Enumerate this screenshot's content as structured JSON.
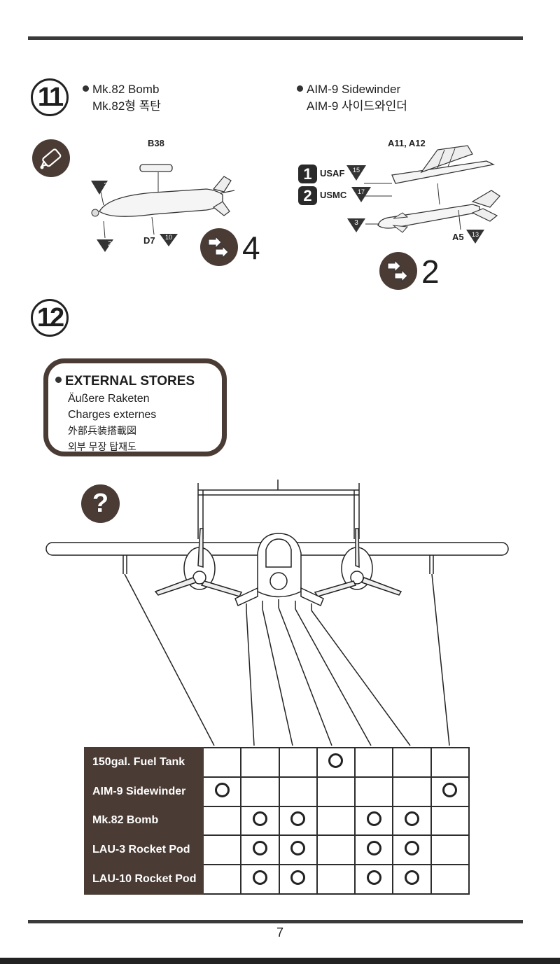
{
  "steps": {
    "s11": {
      "number": "11",
      "mk82": {
        "title_en": "Mk.82 Bomb",
        "title_ko": "Mk.82형 폭탄",
        "part_b38": "B38",
        "part_d7": "D7",
        "num_10": "10",
        "num_3": "3",
        "num_2": "2",
        "qty": "4"
      },
      "aim9": {
        "title_en": "AIM-9 Sidewinder",
        "title_ko": "AIM-9 사이드와인더",
        "part_a11_a12": "A11, A12",
        "usaf": "USAF",
        "usaf_num": "15",
        "usmc": "USMC",
        "usmc_num": "17",
        "badge_1": "1",
        "badge_2": "2",
        "num_3": "3",
        "part_a5": "A5",
        "num_13": "13",
        "qty": "2"
      }
    },
    "s12": {
      "number": "12"
    }
  },
  "external_stores": {
    "title": "EXTERNAL STORES",
    "de": "Äußere Raketen",
    "fr": "Charges externes",
    "ja": "外部兵装搭載図",
    "ko": "외부 무장 탑재도"
  },
  "question_mark": "?",
  "stores_table": {
    "rows": [
      {
        "label": "150gal. Fuel Tank",
        "marks": [
          false,
          false,
          false,
          true,
          false,
          false,
          false
        ]
      },
      {
        "label": "AIM-9 Sidewinder",
        "marks": [
          true,
          false,
          false,
          false,
          false,
          false,
          true
        ]
      },
      {
        "label": "Mk.82 Bomb",
        "marks": [
          false,
          true,
          true,
          false,
          true,
          true,
          false
        ]
      },
      {
        "label": "LAU-3 Rocket Pod",
        "marks": [
          false,
          true,
          true,
          false,
          true,
          true,
          false
        ]
      },
      {
        "label": "LAU-10 Rocket Pod",
        "marks": [
          false,
          true,
          true,
          false,
          true,
          true,
          false
        ]
      }
    ]
  },
  "page_number": "7",
  "colors": {
    "brown": "#4a3b34",
    "ink": "#222222"
  }
}
